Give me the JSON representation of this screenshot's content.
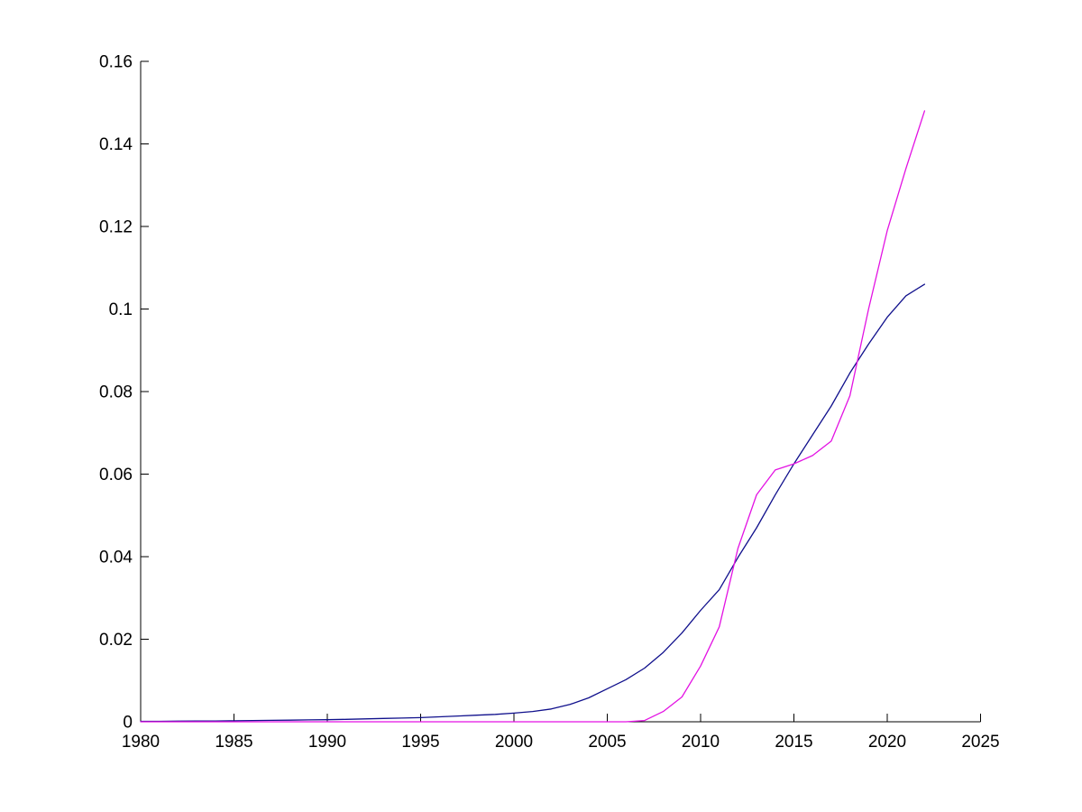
{
  "figure": {
    "background_color": "#ffffff",
    "axis_color": "#000000",
    "title": "",
    "legend": null
  },
  "chart_data": {
    "type": "line",
    "title": "",
    "xlabel": "",
    "ylabel": "",
    "xlim": [
      1980,
      2025
    ],
    "ylim": [
      0,
      0.16
    ],
    "grid": false,
    "legend_position": "none",
    "xticks": [
      1980,
      1985,
      1990,
      1995,
      2000,
      2005,
      2010,
      2015,
      2020,
      2025
    ],
    "xtick_labels": [
      "1980",
      "1985",
      "1990",
      "1995",
      "2000",
      "2005",
      "2010",
      "2015",
      "2020",
      "2025"
    ],
    "yticks": [
      0,
      0.02,
      0.04,
      0.06,
      0.08,
      0.1,
      0.12,
      0.14,
      0.16
    ],
    "ytick_labels": [
      "0",
      "0.02",
      "0.04",
      "0.06",
      "0.08",
      "0.1",
      "0.12",
      "0.14",
      "0.16"
    ],
    "x": [
      1980,
      1981,
      1982,
      1983,
      1984,
      1985,
      1986,
      1987,
      1988,
      1989,
      1990,
      1991,
      1992,
      1993,
      1994,
      1995,
      1996,
      1997,
      1998,
      1999,
      2000,
      2001,
      2002,
      2003,
      2004,
      2005,
      2006,
      2007,
      2008,
      2009,
      2010,
      2011,
      2012,
      2013,
      2014,
      2015,
      2016,
      2017,
      2018,
      2019,
      2020,
      2021,
      2022
    ],
    "series": [
      {
        "name": "smooth-dark-blue-curve",
        "color": "#10108C",
        "values": [
          0.0001,
          0.0001,
          0.00015,
          0.0002,
          0.0002,
          0.00025,
          0.0003,
          0.00035,
          0.0004,
          0.00045,
          0.0005,
          0.0006,
          0.0007,
          0.0008,
          0.0009,
          0.001,
          0.0012,
          0.0014,
          0.0016,
          0.0018,
          0.0021,
          0.0025,
          0.0031,
          0.0042,
          0.0058,
          0.008,
          0.0102,
          0.013,
          0.0168,
          0.0215,
          0.027,
          0.032,
          0.0398,
          0.047,
          0.055,
          0.0625,
          0.0695,
          0.0765,
          0.0845,
          0.0915,
          0.098,
          0.1032,
          0.106
        ]
      },
      {
        "name": "magenta-curve",
        "color": "#E312E3",
        "values": [
          0,
          0,
          0,
          0,
          0,
          0,
          0,
          0,
          0,
          0,
          0,
          0,
          0,
          0,
          0,
          0,
          0,
          0,
          0,
          0,
          0,
          0,
          0,
          0,
          0,
          0,
          0,
          0.0003,
          0.0025,
          0.006,
          0.0135,
          0.023,
          0.042,
          0.055,
          0.061,
          0.0625,
          0.0645,
          0.068,
          0.079,
          0.1,
          0.119,
          0.134,
          0.148
        ]
      }
    ]
  }
}
